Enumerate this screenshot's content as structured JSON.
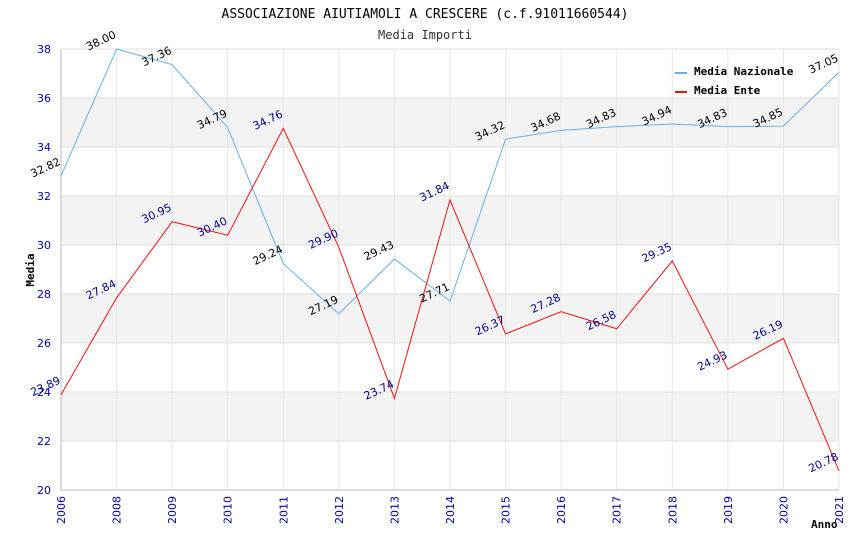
{
  "chart_data": {
    "type": "line",
    "title": "ASSOCIAZIONE AIUTIAMOLI A CRESCERE (c.f.91011660544)",
    "subtitle": "Media Importi",
    "xlabel": "Anno",
    "ylabel": "Media",
    "ylim": [
      20,
      38
    ],
    "yticks": [
      "20",
      "22",
      "24",
      "26",
      "28",
      "30",
      "32",
      "34",
      "36",
      "38"
    ],
    "categories": [
      "2006",
      "2008",
      "2009",
      "2010",
      "2011",
      "2012",
      "2013",
      "2014",
      "2015",
      "2016",
      "2017",
      "2018",
      "2019",
      "2020",
      "2021"
    ],
    "series": [
      {
        "name": "Media Nazionale",
        "color": "#6aaee6",
        "label_color": "#000000",
        "values": [
          32.82,
          38.0,
          37.36,
          34.79,
          29.24,
          27.19,
          29.43,
          27.71,
          34.32,
          34.68,
          34.83,
          34.94,
          34.83,
          34.85,
          37.05
        ],
        "labels": [
          "32.82",
          "38.00",
          "37.36",
          "34.79",
          "29.24",
          "27.19",
          "29.43",
          "27.71",
          "34.32",
          "34.68",
          "34.83",
          "34.94",
          "34.83",
          "34.85",
          "37.05"
        ]
      },
      {
        "name": "Media Ente",
        "color": "#ee1111",
        "label_color": "#00008b",
        "values": [
          23.89,
          27.84,
          30.95,
          30.4,
          34.76,
          29.9,
          23.74,
          31.84,
          26.37,
          27.28,
          26.58,
          29.35,
          24.93,
          26.19,
          20.78
        ],
        "labels": [
          "23.89",
          "27.84",
          "30.95",
          "30.40",
          "34.76",
          "29.90",
          "23.74",
          "31.84",
          "26.37",
          "27.28",
          "26.58",
          "29.35",
          "24.93",
          "26.19",
          "20.78"
        ]
      }
    ],
    "grid": true,
    "legend": "top-right"
  }
}
